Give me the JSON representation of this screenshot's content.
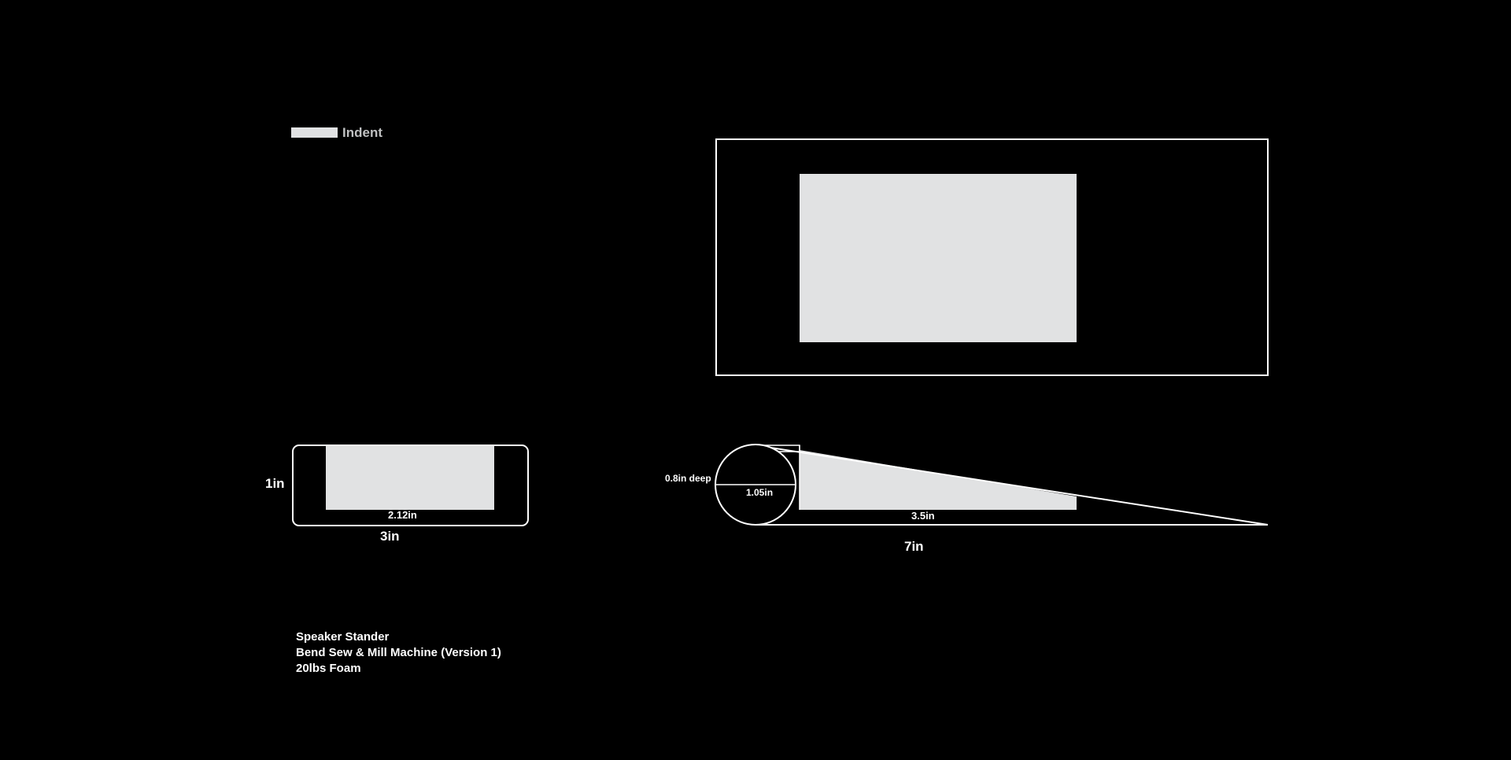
{
  "colors": {
    "background": "#000000",
    "line": "#ffffff",
    "fill": "#e1e2e3",
    "legend_text": "#bfc0c1"
  },
  "legend": {
    "label": "Indent"
  },
  "front_view": {
    "height_label": "1in",
    "width_label": "3in",
    "indent_width_label": "2.12in"
  },
  "side_view": {
    "depth_label": "0.8in deep",
    "circle_label": "1.05in",
    "indent_length_label": "3.5in",
    "total_length_label": "7in"
  },
  "notes": {
    "line1": "Speaker Stander",
    "line2": "Bend Sew & Mill Machine (Version 1)",
    "line3": "20lbs Foam"
  }
}
